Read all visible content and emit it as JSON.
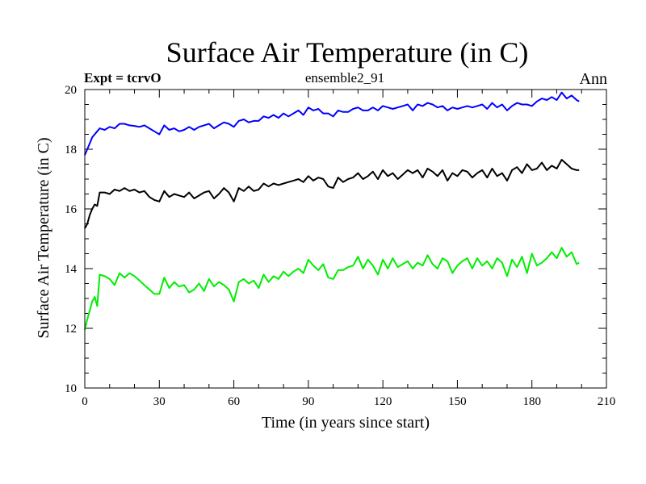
{
  "chart_data": {
    "type": "line",
    "title": "Surface Air Temperature (in C)",
    "experiment_label": "Expt = tcrvO",
    "subtitle": "ensemble2_91",
    "period_label": "Ann",
    "xlabel": "Time (in years since start)",
    "ylabel": "Surface Air Temperature (in C)",
    "xlim": [
      0,
      210
    ],
    "ylim": [
      10,
      20
    ],
    "xticks": [
      0,
      30,
      60,
      90,
      120,
      150,
      180,
      210
    ],
    "yticks": [
      10,
      12,
      14,
      16,
      18,
      20
    ],
    "grid": false,
    "series": [
      {
        "name": "blue",
        "color": "#0000ff",
        "x": [
          0,
          1,
          2,
          3,
          4,
          5,
          6,
          8,
          10,
          12,
          14,
          16,
          18,
          20,
          22,
          24,
          26,
          28,
          30,
          32,
          34,
          36,
          38,
          40,
          42,
          44,
          46,
          48,
          50,
          52,
          54,
          56,
          58,
          60,
          62,
          64,
          66,
          68,
          70,
          72,
          74,
          76,
          78,
          80,
          82,
          84,
          86,
          88,
          90,
          92,
          94,
          96,
          98,
          100,
          102,
          104,
          106,
          108,
          110,
          112,
          114,
          116,
          118,
          120,
          122,
          124,
          126,
          128,
          130,
          132,
          134,
          136,
          138,
          140,
          142,
          144,
          146,
          148,
          150,
          152,
          154,
          156,
          158,
          160,
          162,
          164,
          166,
          168,
          170,
          172,
          174,
          176,
          178,
          180,
          182,
          184,
          186,
          188,
          190,
          192,
          194,
          196,
          198,
          199
        ],
        "values": [
          17.8,
          18.0,
          18.2,
          18.4,
          18.5,
          18.6,
          18.7,
          18.65,
          18.75,
          18.7,
          18.85,
          18.85,
          18.8,
          18.78,
          18.75,
          18.8,
          18.7,
          18.6,
          18.5,
          18.8,
          18.65,
          18.7,
          18.6,
          18.65,
          18.75,
          18.65,
          18.75,
          18.8,
          18.85,
          18.7,
          18.8,
          18.9,
          18.85,
          18.75,
          18.95,
          19.0,
          18.9,
          18.95,
          18.95,
          19.1,
          19.05,
          19.15,
          19.05,
          19.2,
          19.1,
          19.2,
          19.3,
          19.15,
          19.4,
          19.3,
          19.35,
          19.2,
          19.2,
          19.1,
          19.3,
          19.25,
          19.25,
          19.35,
          19.4,
          19.3,
          19.3,
          19.4,
          19.3,
          19.45,
          19.4,
          19.35,
          19.4,
          19.45,
          19.5,
          19.3,
          19.5,
          19.45,
          19.55,
          19.5,
          19.4,
          19.45,
          19.3,
          19.4,
          19.35,
          19.4,
          19.45,
          19.4,
          19.45,
          19.5,
          19.35,
          19.55,
          19.4,
          19.5,
          19.3,
          19.45,
          19.55,
          19.5,
          19.5,
          19.45,
          19.6,
          19.7,
          19.65,
          19.75,
          19.65,
          19.9,
          19.7,
          19.8,
          19.65,
          19.6
        ]
      },
      {
        "name": "black",
        "color": "#000000",
        "x": [
          0,
          1,
          2,
          3,
          4,
          5,
          6,
          8,
          10,
          12,
          14,
          16,
          18,
          20,
          22,
          24,
          26,
          28,
          30,
          32,
          34,
          36,
          38,
          40,
          42,
          44,
          46,
          48,
          50,
          52,
          54,
          56,
          58,
          60,
          62,
          64,
          66,
          68,
          70,
          72,
          74,
          76,
          78,
          80,
          82,
          84,
          86,
          88,
          90,
          92,
          94,
          96,
          98,
          100,
          102,
          104,
          106,
          108,
          110,
          112,
          114,
          116,
          118,
          120,
          122,
          124,
          126,
          128,
          130,
          132,
          134,
          136,
          138,
          140,
          142,
          144,
          146,
          148,
          150,
          152,
          154,
          156,
          158,
          160,
          162,
          164,
          166,
          168,
          170,
          172,
          174,
          176,
          178,
          180,
          182,
          184,
          186,
          188,
          190,
          192,
          194,
          196,
          198,
          199
        ],
        "values": [
          15.35,
          15.5,
          15.8,
          16.0,
          16.15,
          16.1,
          16.55,
          16.55,
          16.5,
          16.65,
          16.6,
          16.7,
          16.6,
          16.65,
          16.55,
          16.6,
          16.4,
          16.3,
          16.25,
          16.6,
          16.4,
          16.5,
          16.45,
          16.4,
          16.55,
          16.35,
          16.45,
          16.55,
          16.6,
          16.35,
          16.5,
          16.7,
          16.55,
          16.25,
          16.7,
          16.6,
          16.75,
          16.6,
          16.65,
          16.85,
          16.75,
          16.85,
          16.8,
          16.85,
          16.9,
          16.95,
          17.0,
          16.9,
          17.1,
          16.95,
          17.05,
          17.0,
          16.75,
          16.7,
          17.05,
          16.9,
          17.0,
          17.05,
          17.2,
          17.0,
          17.1,
          17.25,
          17.0,
          17.3,
          17.1,
          17.2,
          17.0,
          17.15,
          17.3,
          17.2,
          17.3,
          17.05,
          17.35,
          17.25,
          17.1,
          17.3,
          16.95,
          17.2,
          17.1,
          17.3,
          17.25,
          17.05,
          17.2,
          17.3,
          17.05,
          17.35,
          17.1,
          17.2,
          16.95,
          17.3,
          17.4,
          17.2,
          17.5,
          17.3,
          17.35,
          17.55,
          17.3,
          17.45,
          17.35,
          17.65,
          17.5,
          17.35,
          17.3,
          17.3
        ]
      },
      {
        "name": "green",
        "color": "#00ee00",
        "x": [
          0,
          1,
          2,
          3,
          4,
          5,
          6,
          8,
          10,
          12,
          14,
          16,
          18,
          20,
          22,
          24,
          26,
          28,
          30,
          32,
          34,
          36,
          38,
          40,
          42,
          44,
          46,
          48,
          50,
          52,
          54,
          56,
          58,
          60,
          62,
          64,
          66,
          68,
          70,
          72,
          74,
          76,
          78,
          80,
          82,
          84,
          86,
          88,
          90,
          92,
          94,
          96,
          98,
          100,
          102,
          104,
          106,
          108,
          110,
          112,
          114,
          116,
          118,
          120,
          122,
          124,
          126,
          128,
          130,
          132,
          134,
          136,
          138,
          140,
          142,
          144,
          146,
          148,
          150,
          152,
          154,
          156,
          158,
          160,
          162,
          164,
          166,
          168,
          170,
          172,
          174,
          176,
          178,
          180,
          182,
          184,
          186,
          188,
          190,
          192,
          194,
          196,
          198,
          199
        ],
        "values": [
          11.95,
          12.3,
          12.6,
          12.9,
          13.05,
          12.75,
          13.8,
          13.75,
          13.65,
          13.45,
          13.85,
          13.7,
          13.85,
          13.75,
          13.6,
          13.45,
          13.3,
          13.15,
          13.15,
          13.7,
          13.35,
          13.55,
          13.4,
          13.45,
          13.2,
          13.3,
          13.5,
          13.25,
          13.65,
          13.4,
          13.55,
          13.45,
          13.3,
          12.9,
          13.55,
          13.65,
          13.5,
          13.6,
          13.35,
          13.8,
          13.55,
          13.75,
          13.65,
          13.9,
          13.75,
          13.9,
          14.0,
          13.85,
          14.3,
          14.1,
          13.95,
          14.15,
          13.7,
          13.65,
          13.95,
          13.95,
          14.05,
          14.1,
          14.4,
          14.0,
          14.3,
          14.1,
          13.8,
          14.3,
          14.0,
          14.35,
          14.05,
          14.15,
          14.25,
          14.0,
          14.2,
          14.1,
          14.45,
          14.15,
          14.0,
          14.35,
          14.25,
          13.85,
          14.1,
          14.25,
          14.35,
          14.0,
          14.35,
          14.1,
          14.25,
          14.0,
          14.35,
          14.2,
          13.75,
          14.3,
          14.05,
          14.4,
          13.85,
          14.5,
          14.1,
          14.2,
          14.35,
          14.55,
          14.35,
          14.7,
          14.4,
          14.55,
          14.15,
          14.2
        ]
      }
    ]
  }
}
